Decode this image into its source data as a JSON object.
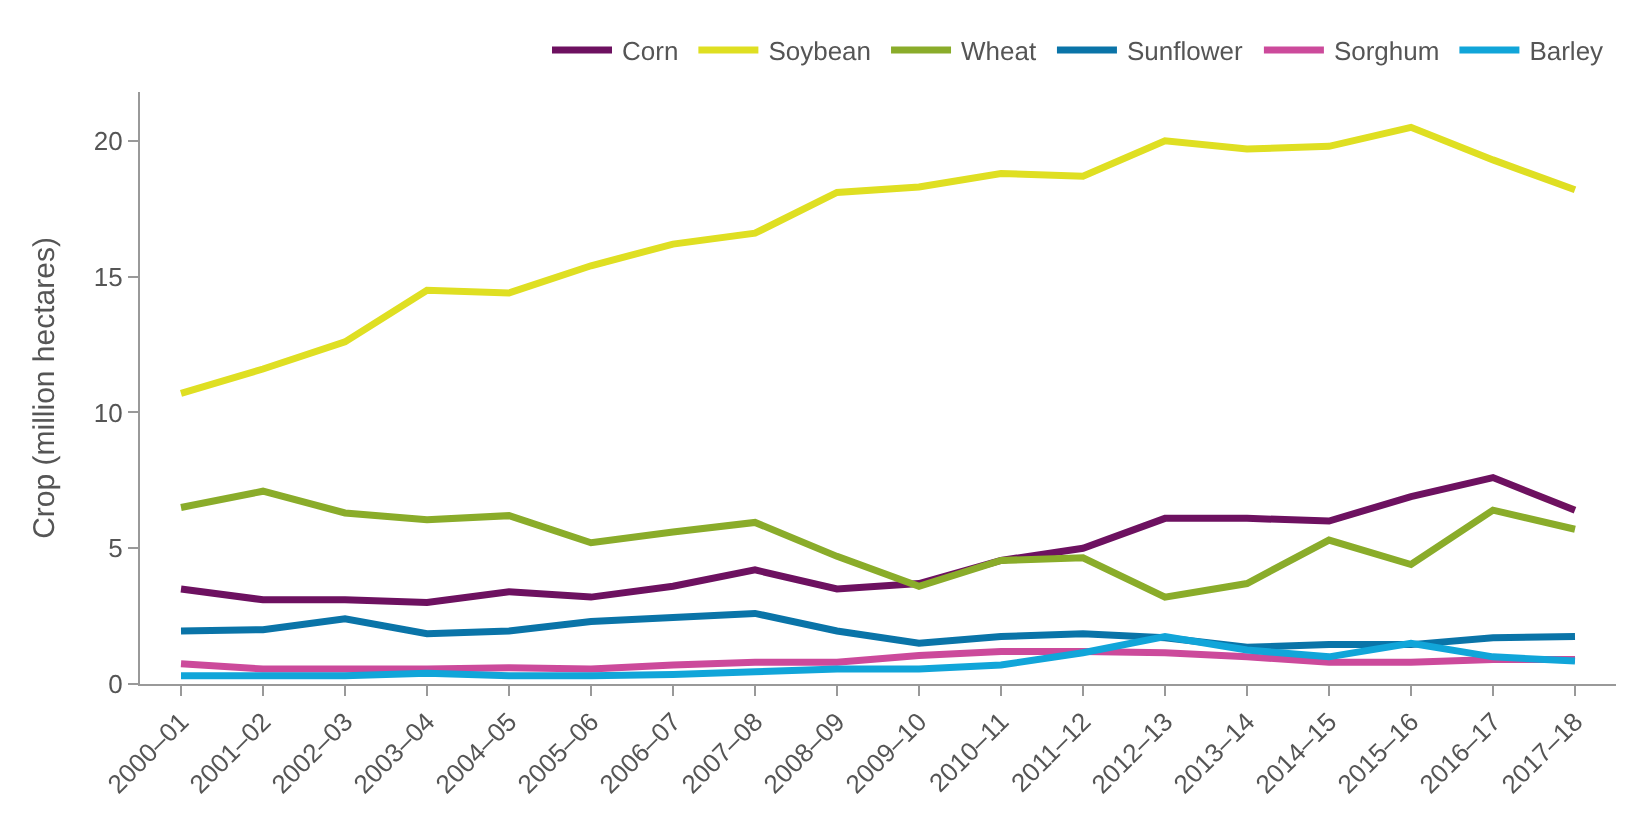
{
  "chart_data": {
    "type": "line",
    "ylabel": "Crop (million hectares)",
    "categories": [
      "2000–01",
      "2001–02",
      "2002–03",
      "2003–04",
      "2004–05",
      "2005–06",
      "2006–07",
      "2007–08",
      "2008–09",
      "2009–10",
      "2010–11",
      "2011–12",
      "2012–13",
      "2013–14",
      "2014–15",
      "2015–16",
      "2016–17",
      "2017–18"
    ],
    "series": [
      {
        "name": "Corn",
        "color": "#6d1160",
        "values": [
          3.5,
          3.1,
          3.1,
          3.0,
          3.4,
          3.2,
          3.6,
          4.2,
          3.5,
          3.7,
          4.55,
          5.0,
          6.1,
          6.1,
          6.0,
          6.9,
          7.6,
          6.4
        ]
      },
      {
        "name": "Soybean",
        "color": "#dfdf22",
        "values": [
          10.7,
          11.6,
          12.6,
          14.5,
          14.4,
          15.4,
          16.2,
          16.6,
          18.1,
          18.3,
          18.8,
          18.7,
          20.0,
          19.7,
          19.8,
          20.5,
          19.3,
          18.2
        ]
      },
      {
        "name": "Wheat",
        "color": "#8aac2a",
        "values": [
          6.5,
          7.1,
          6.3,
          6.05,
          6.2,
          5.2,
          5.6,
          5.95,
          4.7,
          3.6,
          4.55,
          4.65,
          3.2,
          3.7,
          5.3,
          4.4,
          6.4,
          5.7
        ]
      },
      {
        "name": "Sunflower",
        "color": "#0a74a8",
        "values": [
          1.95,
          2.0,
          2.4,
          1.85,
          1.95,
          2.3,
          2.45,
          2.6,
          1.95,
          1.5,
          1.75,
          1.85,
          1.7,
          1.35,
          1.45,
          1.45,
          1.7,
          1.75
        ]
      },
      {
        "name": "Sorghum",
        "color": "#cc4a9b",
        "values": [
          0.75,
          0.55,
          0.55,
          0.55,
          0.6,
          0.55,
          0.7,
          0.8,
          0.8,
          1.05,
          1.2,
          1.2,
          1.15,
          1.0,
          0.8,
          0.8,
          0.9,
          0.9
        ]
      },
      {
        "name": "Barley",
        "color": "#11a5d9",
        "values": [
          0.3,
          0.3,
          0.3,
          0.4,
          0.3,
          0.3,
          0.35,
          0.45,
          0.55,
          0.55,
          0.7,
          1.15,
          1.75,
          1.25,
          1.0,
          1.5,
          1.0,
          0.85
        ]
      }
    ],
    "ylim": [
      0,
      21.8
    ],
    "yticks": [
      0,
      5,
      10,
      15,
      20
    ],
    "legend": "top right",
    "marker": "none",
    "line_style": "solid"
  }
}
